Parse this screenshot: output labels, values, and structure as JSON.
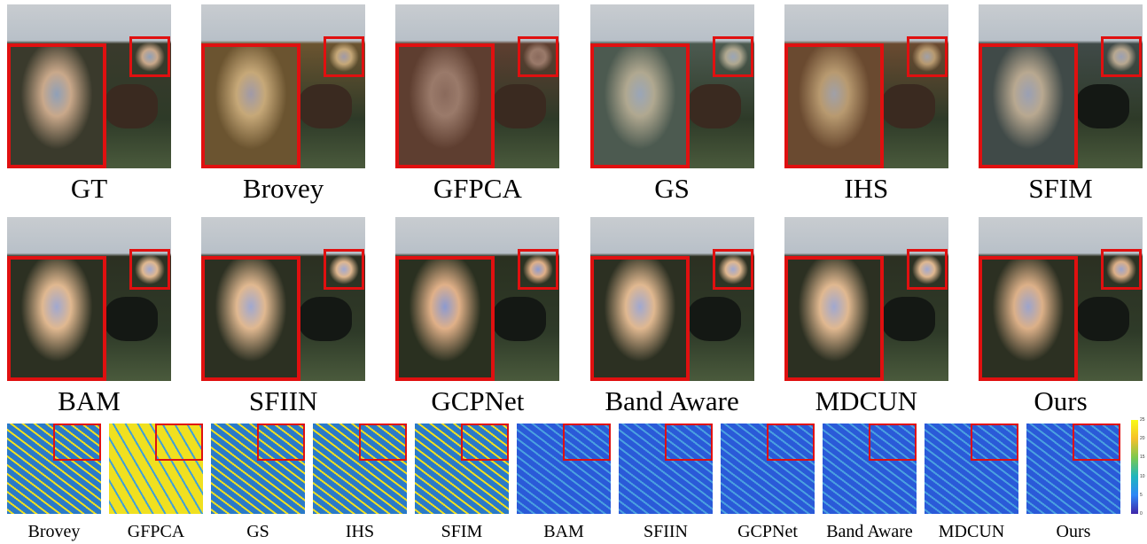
{
  "rows": [
    {
      "panels": [
        {
          "label": "GT"
        },
        {
          "label": "Brovey"
        },
        {
          "label": "GFPCA"
        },
        {
          "label": "GS"
        },
        {
          "label": "IHS"
        },
        {
          "label": "SFIM"
        }
      ]
    },
    {
      "panels": [
        {
          "label": "BAM"
        },
        {
          "label": "SFIIN"
        },
        {
          "label": "GCPNet"
        },
        {
          "label": "Band Aware"
        },
        {
          "label": "MDCUN"
        },
        {
          "label": "Ours"
        }
      ]
    }
  ],
  "error_maps": {
    "labels": [
      "Brovey",
      "GFPCA",
      "GS",
      "IHS",
      "SFIM",
      "BAM",
      "SFIIN",
      "GCPNet",
      "Band Aware",
      "MDCUN",
      "Ours"
    ],
    "colorbar_ticks": [
      0,
      5,
      10,
      15,
      20,
      25
    ]
  }
}
